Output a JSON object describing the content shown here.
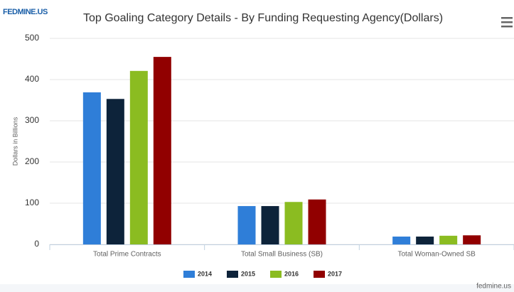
{
  "logo": "FEDMINE.US",
  "watermark": "fedmine.us",
  "chart_data": {
    "type": "bar",
    "title": "Top Goaling Category Details - By Funding Requesting Agency(Dollars)",
    "y_label": "Dollars in Billions",
    "categories": [
      "Total Prime Contracts",
      "Total Small Business (SB)",
      "Total Woman-Owned SB"
    ],
    "series": [
      {
        "name": "2014",
        "color": "#2f7ed8",
        "values": [
          369,
          93,
          19
        ]
      },
      {
        "name": "2015",
        "color": "#0d233a",
        "values": [
          353,
          93,
          19
        ]
      },
      {
        "name": "2016",
        "color": "#8bbc21",
        "values": [
          421,
          103,
          21
        ]
      },
      {
        "name": "2017",
        "color": "#910000",
        "values": [
          455,
          109,
          22
        ]
      }
    ],
    "ylim": [
      0,
      500
    ],
    "yticks": [
      0,
      100,
      200,
      300,
      400,
      500
    ],
    "grid": true,
    "legend": "bottom"
  }
}
